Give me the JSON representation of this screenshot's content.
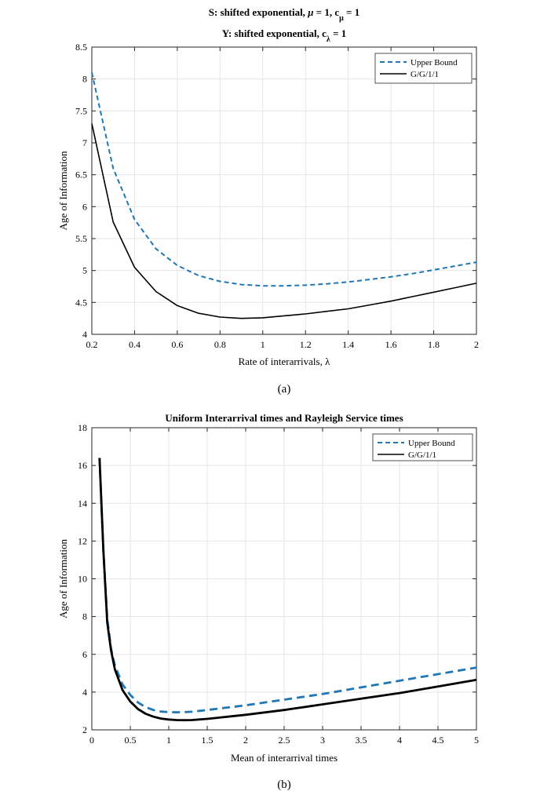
{
  "colors": {
    "upper": "#1f77b4",
    "gg": "#000000"
  },
  "charts": [
    {
      "type": "line",
      "title_line1": {
        "pre": "S: shifted exponential, ",
        "mu": "μ",
        "mid": " = 1, c",
        "sub": "μ",
        "post": " = 1"
      },
      "title_line2": {
        "pre": "Y: shifted exponential, c",
        "sub": "λ",
        "post": " = 1"
      },
      "xlabel": "Rate of interarrivals, λ",
      "ylabel": "Age of Information",
      "caption": "(a)",
      "xlim": [
        0.2,
        2
      ],
      "ylim": [
        4,
        8.5
      ],
      "xticks": [
        0.2,
        0.4,
        0.6,
        0.8,
        1,
        1.2,
        1.4,
        1.6,
        1.8,
        2
      ],
      "yticks": [
        4,
        4.5,
        5,
        5.5,
        6,
        6.5,
        7,
        7.5,
        8,
        8.5
      ],
      "grid": true,
      "legend": "top-right",
      "series": [
        {
          "name": "Upper Bound",
          "style": "dashed",
          "x": [
            0.2,
            0.3,
            0.4,
            0.5,
            0.6,
            0.7,
            0.8,
            0.9,
            1.0,
            1.1,
            1.2,
            1.3,
            1.4,
            1.5,
            1.6,
            1.7,
            1.8,
            1.9,
            2.0
          ],
          "y": [
            8.1,
            6.6,
            5.8,
            5.34,
            5.08,
            4.92,
            4.83,
            4.78,
            4.76,
            4.76,
            4.77,
            4.79,
            4.82,
            4.86,
            4.9,
            4.95,
            5.01,
            5.07,
            5.13
          ]
        },
        {
          "name": "G/G/1/1",
          "style": "solid",
          "x": [
            0.2,
            0.3,
            0.4,
            0.5,
            0.6,
            0.7,
            0.8,
            0.9,
            1.0,
            1.1,
            1.2,
            1.3,
            1.4,
            1.5,
            1.6,
            1.7,
            1.8,
            1.9,
            2.0
          ],
          "y": [
            7.3,
            5.76,
            5.05,
            4.67,
            4.45,
            4.33,
            4.27,
            4.25,
            4.26,
            4.29,
            4.32,
            4.36,
            4.4,
            4.46,
            4.52,
            4.59,
            4.66,
            4.73,
            4.8
          ]
        }
      ]
    },
    {
      "type": "line",
      "title": "Uniform Interarrival times and Rayleigh Service times",
      "xlabel": "Mean of interarrival times",
      "ylabel": "Age of Information",
      "caption": "(b)",
      "xlim": [
        0,
        5
      ],
      "ylim": [
        2,
        18
      ],
      "xticks": [
        0,
        0.5,
        1,
        1.5,
        2,
        2.5,
        3,
        3.5,
        4,
        4.5,
        5
      ],
      "xticklabels": [
        "0",
        "0.5",
        "1",
        "1.5",
        "2",
        "2.5",
        "3",
        "3.5",
        "4",
        "4.5",
        "5"
      ],
      "yticks": [
        2,
        4,
        6,
        8,
        10,
        12,
        14,
        16,
        18
      ],
      "grid": true,
      "legend": "top-right",
      "series": [
        {
          "name": "Upper Bound",
          "style": "dashed",
          "x": [
            0.1,
            0.15,
            0.2,
            0.25,
            0.3,
            0.4,
            0.5,
            0.6,
            0.7,
            0.8,
            0.9,
            1.0,
            1.1,
            1.2,
            1.3,
            1.5,
            2.0,
            2.5,
            3.0,
            3.5,
            4.0,
            4.5,
            5.0
          ],
          "y": [
            16.4,
            11.5,
            7.9,
            6.3,
            5.4,
            4.4,
            3.85,
            3.45,
            3.2,
            3.05,
            2.97,
            2.94,
            2.93,
            2.94,
            2.96,
            3.05,
            3.3,
            3.6,
            3.9,
            4.25,
            4.6,
            4.95,
            5.3
          ]
        },
        {
          "name": "G/G/1/1",
          "style": "solid",
          "x": [
            0.1,
            0.15,
            0.2,
            0.25,
            0.3,
            0.4,
            0.5,
            0.6,
            0.7,
            0.8,
            0.9,
            1.0,
            1.1,
            1.2,
            1.3,
            1.5,
            2.0,
            2.5,
            3.0,
            3.5,
            4.0,
            4.5,
            5.0
          ],
          "y": [
            16.4,
            11.5,
            7.7,
            6.2,
            5.2,
            4.1,
            3.5,
            3.1,
            2.85,
            2.7,
            2.6,
            2.55,
            2.52,
            2.51,
            2.52,
            2.58,
            2.8,
            3.05,
            3.35,
            3.65,
            3.95,
            4.3,
            4.65
          ]
        }
      ]
    }
  ]
}
